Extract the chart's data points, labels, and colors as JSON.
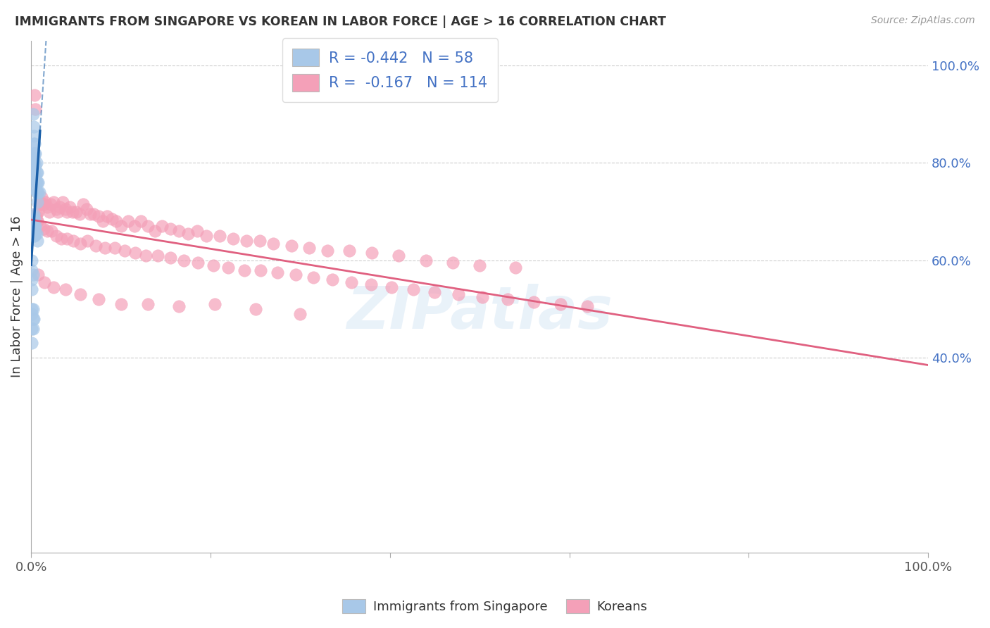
{
  "title": "IMMIGRANTS FROM SINGAPORE VS KOREAN IN LABOR FORCE | AGE > 16 CORRELATION CHART",
  "source": "Source: ZipAtlas.com",
  "ylabel": "In Labor Force | Age > 16",
  "watermark": "ZIPatlas",
  "legend_blue_R": "-0.442",
  "legend_blue_N": "58",
  "legend_pink_R": "-0.167",
  "legend_pink_N": "114",
  "blue_color": "#a8c8e8",
  "blue_line_color": "#1a5fa8",
  "pink_color": "#f4a0b8",
  "pink_line_color": "#e06080",
  "xlim": [
    0.0,
    1.0
  ],
  "ylim": [
    0.0,
    1.05
  ],
  "sg_x": [
    0.002,
    0.003,
    0.003,
    0.003,
    0.003,
    0.003,
    0.003,
    0.003,
    0.003,
    0.004,
    0.004,
    0.004,
    0.004,
    0.004,
    0.005,
    0.005,
    0.005,
    0.005,
    0.005,
    0.006,
    0.006,
    0.006,
    0.006,
    0.007,
    0.007,
    0.007,
    0.007,
    0.008,
    0.008,
    0.009,
    0.002,
    0.002,
    0.002,
    0.002,
    0.003,
    0.003,
    0.003,
    0.003,
    0.004,
    0.004,
    0.004,
    0.005,
    0.005,
    0.006,
    0.007,
    0.001,
    0.001,
    0.001,
    0.001,
    0.002,
    0.001,
    0.001,
    0.001,
    0.001,
    0.002,
    0.002,
    0.002,
    0.003
  ],
  "sg_y": [
    0.9,
    0.875,
    0.855,
    0.84,
    0.82,
    0.81,
    0.8,
    0.79,
    0.78,
    0.84,
    0.82,
    0.8,
    0.785,
    0.77,
    0.82,
    0.795,
    0.775,
    0.76,
    0.745,
    0.8,
    0.78,
    0.76,
    0.74,
    0.78,
    0.76,
    0.74,
    0.72,
    0.76,
    0.74,
    0.74,
    0.69,
    0.68,
    0.67,
    0.66,
    0.695,
    0.68,
    0.665,
    0.65,
    0.685,
    0.668,
    0.65,
    0.67,
    0.655,
    0.655,
    0.64,
    0.6,
    0.58,
    0.56,
    0.54,
    0.57,
    0.5,
    0.49,
    0.46,
    0.43,
    0.5,
    0.48,
    0.46,
    0.48
  ],
  "kr_x": [
    0.004,
    0.005,
    0.006,
    0.007,
    0.008,
    0.009,
    0.01,
    0.012,
    0.014,
    0.016,
    0.018,
    0.02,
    0.022,
    0.025,
    0.028,
    0.03,
    0.032,
    0.035,
    0.038,
    0.04,
    0.043,
    0.046,
    0.05,
    0.054,
    0.058,
    0.062,
    0.066,
    0.07,
    0.075,
    0.08,
    0.085,
    0.09,
    0.095,
    0.1,
    0.108,
    0.115,
    0.122,
    0.13,
    0.138,
    0.146,
    0.155,
    0.165,
    0.175,
    0.185,
    0.195,
    0.21,
    0.225,
    0.24,
    0.255,
    0.27,
    0.29,
    0.31,
    0.33,
    0.355,
    0.38,
    0.41,
    0.44,
    0.47,
    0.5,
    0.54,
    0.003,
    0.005,
    0.007,
    0.01,
    0.014,
    0.018,
    0.023,
    0.028,
    0.034,
    0.04,
    0.047,
    0.055,
    0.063,
    0.072,
    0.082,
    0.093,
    0.104,
    0.116,
    0.128,
    0.141,
    0.155,
    0.17,
    0.186,
    0.203,
    0.22,
    0.238,
    0.256,
    0.275,
    0.295,
    0.315,
    0.336,
    0.357,
    0.379,
    0.402,
    0.426,
    0.45,
    0.476,
    0.503,
    0.531,
    0.56,
    0.59,
    0.62,
    0.008,
    0.015,
    0.025,
    0.038,
    0.055,
    0.075,
    0.1,
    0.13,
    0.165,
    0.205,
    0.25,
    0.3
  ],
  "kr_y": [
    0.94,
    0.91,
    0.695,
    0.68,
    0.7,
    0.715,
    0.72,
    0.73,
    0.715,
    0.72,
    0.71,
    0.7,
    0.715,
    0.72,
    0.705,
    0.7,
    0.71,
    0.72,
    0.705,
    0.7,
    0.71,
    0.7,
    0.7,
    0.695,
    0.715,
    0.705,
    0.695,
    0.695,
    0.69,
    0.68,
    0.69,
    0.685,
    0.68,
    0.67,
    0.68,
    0.67,
    0.68,
    0.67,
    0.66,
    0.67,
    0.665,
    0.66,
    0.655,
    0.66,
    0.65,
    0.65,
    0.645,
    0.64,
    0.64,
    0.635,
    0.63,
    0.625,
    0.62,
    0.62,
    0.615,
    0.61,
    0.6,
    0.595,
    0.59,
    0.585,
    0.68,
    0.69,
    0.68,
    0.67,
    0.665,
    0.66,
    0.66,
    0.65,
    0.645,
    0.645,
    0.64,
    0.635,
    0.64,
    0.63,
    0.625,
    0.625,
    0.62,
    0.615,
    0.61,
    0.61,
    0.605,
    0.6,
    0.595,
    0.59,
    0.585,
    0.58,
    0.58,
    0.575,
    0.57,
    0.565,
    0.56,
    0.555,
    0.55,
    0.545,
    0.54,
    0.535,
    0.53,
    0.525,
    0.52,
    0.515,
    0.51,
    0.505,
    0.57,
    0.555,
    0.545,
    0.54,
    0.53,
    0.52,
    0.51,
    0.51,
    0.505,
    0.51,
    0.5,
    0.49
  ]
}
